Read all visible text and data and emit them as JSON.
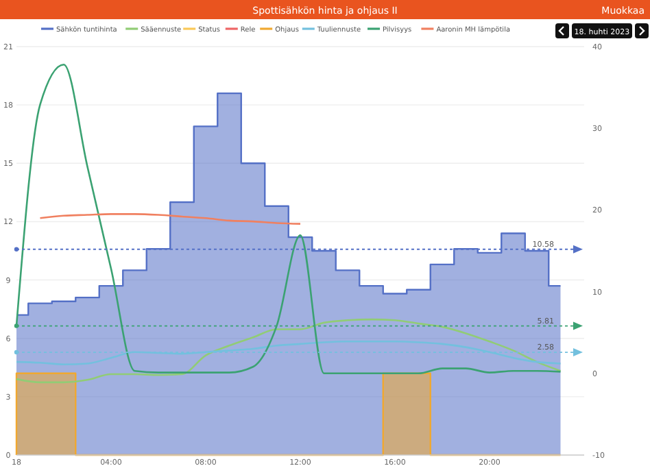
{
  "chart_data": {
    "type": "line",
    "title": "Spottisähkön hinta ja ohjaus II",
    "annotations": [
      "Muokkaa",
      "18. huhti 2023"
    ],
    "x": [
      "2023-04-18T00:00",
      "2023-04-18T01:00",
      "2023-04-18T02:00",
      "2023-04-18T03:00",
      "2023-04-18T04:00",
      "2023-04-18T05:00",
      "2023-04-18T06:00",
      "2023-04-18T07:00",
      "2023-04-18T08:00",
      "2023-04-18T09:00",
      "2023-04-18T10:00",
      "2023-04-18T11:00",
      "2023-04-18T12:00",
      "2023-04-18T13:00",
      "2023-04-18T14:00",
      "2023-04-18T15:00",
      "2023-04-18T16:00",
      "2023-04-18T17:00",
      "2023-04-18T18:00",
      "2023-04-18T19:00",
      "2023-04-18T20:00",
      "2023-04-18T21:00",
      "2023-04-18T22:00",
      "2023-04-18T23:00"
    ],
    "xlim": [
      "2023-04-18T00:00",
      "2023-04-19T00:00"
    ],
    "xticks": [
      {
        "value": "2023-04-18T00:00",
        "label": "18"
      },
      {
        "value": "2023-04-18T04:00",
        "label": "04:00"
      },
      {
        "value": "2023-04-18T08:00",
        "label": "08:00"
      },
      {
        "value": "2023-04-18T12:00",
        "label": "12:00"
      },
      {
        "value": "2023-04-18T16:00",
        "label": "16:00"
      },
      {
        "value": "2023-04-18T20:00",
        "label": "20:00"
      }
    ],
    "ylim": [
      0,
      21
    ],
    "yticks": [
      0,
      3,
      6,
      9,
      12,
      15,
      18,
      21
    ],
    "y2lim": [
      -10,
      40
    ],
    "y2ticks": [
      -10,
      0,
      10,
      20,
      30,
      40
    ],
    "grid": "y",
    "legend": "top",
    "marker": "none",
    "series": [
      {
        "name": "Sähkön tuntihinta",
        "type": "area",
        "color": "#5470c6",
        "x": [
          "2023-04-18T00:00",
          "2023-04-18T00:30",
          "2023-04-18T00:30",
          "2023-04-18T01:30",
          "2023-04-18T01:30",
          "2023-04-18T02:30",
          "2023-04-18T02:30",
          "2023-04-18T03:30",
          "2023-04-18T03:30",
          "2023-04-18T04:30",
          "2023-04-18T04:30",
          "2023-04-18T05:30",
          "2023-04-18T05:30",
          "2023-04-18T06:30",
          "2023-04-18T06:30",
          "2023-04-18T07:30",
          "2023-04-18T07:30",
          "2023-04-18T08:30",
          "2023-04-18T08:30",
          "2023-04-18T09:30",
          "2023-04-18T09:30",
          "2023-04-18T10:30",
          "2023-04-18T10:30",
          "2023-04-18T11:30",
          "2023-04-18T11:30",
          "2023-04-18T12:30",
          "2023-04-18T12:30",
          "2023-04-18T13:30",
          "2023-04-18T13:30",
          "2023-04-18T14:30",
          "2023-04-18T14:30",
          "2023-04-18T15:30",
          "2023-04-18T15:30",
          "2023-04-18T16:30",
          "2023-04-18T16:30",
          "2023-04-18T17:30",
          "2023-04-18T17:30",
          "2023-04-18T18:30",
          "2023-04-18T18:30",
          "2023-04-18T19:30",
          "2023-04-18T19:30",
          "2023-04-18T20:30",
          "2023-04-18T20:30",
          "2023-04-18T21:30",
          "2023-04-18T21:30",
          "2023-04-18T22:30",
          "2023-04-18T22:30",
          "2023-04-18T23:00"
        ],
        "values": [
          7.2,
          7.2,
          7.8,
          7.8,
          7.9,
          7.9,
          8.1,
          8.1,
          8.7,
          8.7,
          9.5,
          9.5,
          10.6,
          10.6,
          13,
          13,
          16.9,
          16.9,
          18.6,
          18.6,
          15,
          15,
          12.8,
          12.8,
          11.2,
          11.2,
          10.5,
          10.5,
          9.5,
          9.5,
          8.7,
          8.7,
          8.3,
          8.3,
          8.5,
          8.5,
          9.8,
          9.8,
          10.6,
          10.6,
          10.4,
          10.4,
          11.4,
          11.4,
          10.5,
          10.5,
          8.7,
          8.7
        ]
      },
      {
        "name": "Sääennuste",
        "axis": "y2",
        "color": "#91cc75",
        "values": [
          -0.7,
          -1.1,
          -1.1,
          -0.8,
          -0.1,
          -0.1,
          -0.2,
          -0.1,
          2.2,
          3.4,
          4.4,
          5.4,
          5.4,
          6.2,
          6.5,
          6.6,
          6.5,
          6.1,
          5.7,
          4.9,
          3.9,
          2.8,
          1.4,
          0.3
        ]
      },
      {
        "name": "Status",
        "axis": "y2",
        "color": "#fac858",
        "values": [
          null,
          null,
          null,
          null,
          null,
          null,
          null,
          null,
          null,
          null,
          null,
          null,
          null,
          null,
          null,
          null,
          null,
          null,
          null,
          null,
          null,
          null,
          null,
          null
        ]
      },
      {
        "name": "Rele",
        "axis": "y2",
        "color": "#ee6666",
        "values": [
          null,
          null,
          null,
          null,
          null,
          null,
          null,
          null,
          null,
          null,
          null,
          null,
          null,
          null,
          null,
          null,
          null,
          null,
          null,
          null,
          null,
          null,
          null,
          null
        ]
      },
      {
        "name": "Ohjaus",
        "type": "area",
        "axis": "y2",
        "color": "#f0a830",
        "x": [
          "2023-04-18T00:00",
          "2023-04-18T00:00",
          "2023-04-18T02:30",
          "2023-04-18T02:30",
          "2023-04-18T15:30",
          "2023-04-18T15:30",
          "2023-04-18T17:30",
          "2023-04-18T17:30",
          "2023-04-18T23:00"
        ],
        "values": [
          -10,
          0,
          0,
          -10,
          -10,
          0,
          0,
          -10,
          -10
        ]
      },
      {
        "name": "Tuuliennuste",
        "axis": "y2",
        "color": "#73c0de",
        "values": [
          1.4,
          1.3,
          1.1,
          1.2,
          1.9,
          2.6,
          2.5,
          2.4,
          2.6,
          2.8,
          3,
          3.4,
          3.6,
          3.8,
          3.9,
          3.9,
          3.9,
          3.8,
          3.6,
          3.2,
          2.6,
          1.9,
          1.4,
          1.2
        ]
      },
      {
        "name": "Pilvisyys",
        "axis": "y2",
        "color": "#3ba272",
        "values": [
          5.8,
          32.9,
          37.8,
          25.3,
          12.8,
          0.3,
          0.1,
          0.1,
          0.1,
          0.1,
          0.8,
          5.8,
          16.9,
          0,
          0,
          0,
          0,
          0,
          0.6,
          0.6,
          0.1,
          0.3,
          0.3,
          0.2
        ]
      },
      {
        "name": "Aaronin MH lämpötila",
        "axis": "y2",
        "color": "#f08060",
        "values": [
          null,
          19,
          19.3,
          19.4,
          19.5,
          19.5,
          19.4,
          19.2,
          19,
          18.7,
          18.6,
          18.4,
          18.3,
          null,
          null,
          null,
          null,
          null,
          null,
          null,
          null,
          null,
          null,
          null
        ]
      }
    ],
    "ref_lines": [
      {
        "axis": "y",
        "value": 10.58,
        "label": "10.58",
        "color": "#5470c6",
        "line_style": "dotted"
      },
      {
        "axis": "y2",
        "value": 5.81,
        "label": "5.81",
        "color": "#3ba272",
        "line_style": "dotted"
      },
      {
        "axis": "y2",
        "value": 2.58,
        "label": "2.58",
        "color": "#73c0de",
        "line_style": "dotted"
      }
    ]
  }
}
